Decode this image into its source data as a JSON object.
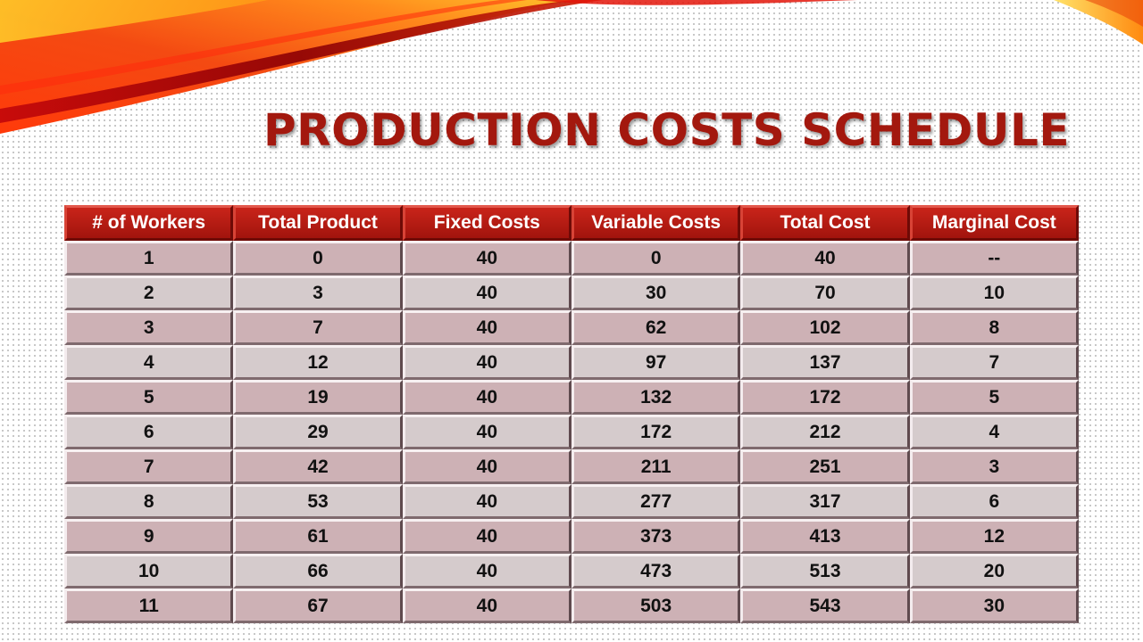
{
  "slide": {
    "title": "PRODUCTION COSTS SCHEDULE"
  },
  "table": {
    "headers": [
      "# of Workers",
      "Total Product",
      "Fixed Costs",
      "Variable Costs",
      "Total Cost",
      "Marginal Cost"
    ],
    "rows": [
      [
        "1",
        "0",
        "40",
        "0",
        "40",
        "--"
      ],
      [
        "2",
        "3",
        "40",
        "30",
        "70",
        "10"
      ],
      [
        "3",
        "7",
        "40",
        "62",
        "102",
        "8"
      ],
      [
        "4",
        "12",
        "40",
        "97",
        "137",
        "7"
      ],
      [
        "5",
        "19",
        "40",
        "132",
        "172",
        "5"
      ],
      [
        "6",
        "29",
        "40",
        "172",
        "212",
        "4"
      ],
      [
        "7",
        "42",
        "40",
        "211",
        "251",
        "3"
      ],
      [
        "8",
        "53",
        "40",
        "277",
        "317",
        "6"
      ],
      [
        "9",
        "61",
        "40",
        "373",
        "413",
        "12"
      ],
      [
        "10",
        "66",
        "40",
        "473",
        "513",
        "20"
      ],
      [
        "11",
        "67",
        "40",
        "503",
        "543",
        "30"
      ]
    ]
  },
  "colors": {
    "title": "#a3180e",
    "header_bg": "#b51a12",
    "row_odd": "#cdb1b5",
    "row_even": "#d5cbcc"
  }
}
